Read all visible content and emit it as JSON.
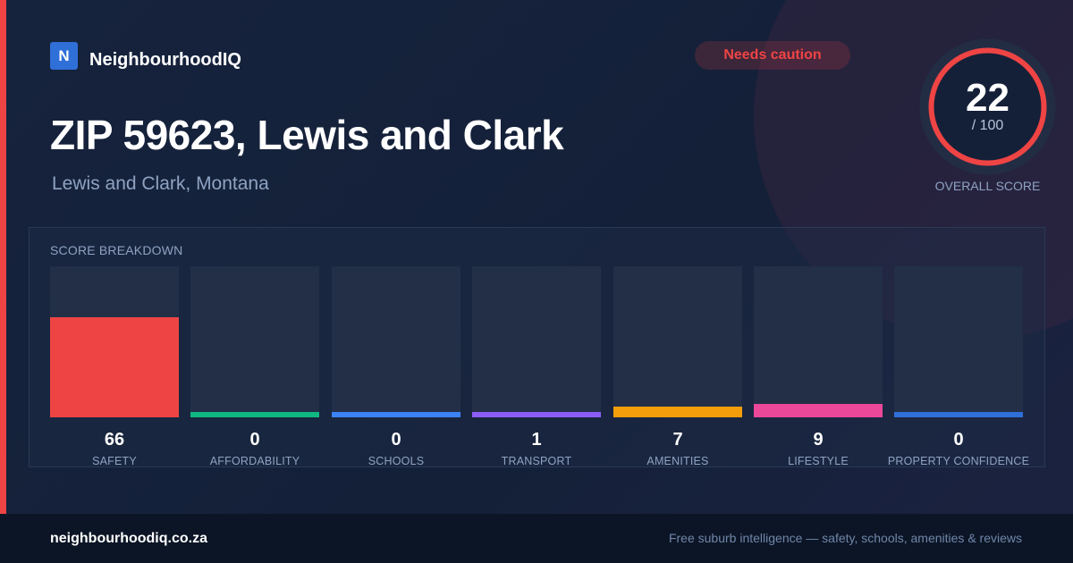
{
  "brand": {
    "logo_letter": "N",
    "name": "NeighbourhoodIQ"
  },
  "badge": {
    "label": "Needs caution",
    "color": "#ef4444"
  },
  "header": {
    "title": "ZIP 59623, Lewis and Clark",
    "subtitle": "Lewis and Clark, Montana"
  },
  "overall": {
    "value": "22",
    "max_label": "/ 100",
    "label": "OVERALL SCORE",
    "ring_color": "#ef4444"
  },
  "chart_data": {
    "type": "bar",
    "title": "SCORE BREAKDOWN",
    "ylim": [
      0,
      100
    ],
    "categories": [
      "SAFETY",
      "AFFORDABILITY",
      "SCHOOLS",
      "TRANSPORT",
      "AMENITIES",
      "LIFESTYLE",
      "PROPERTY CONFIDENCE"
    ],
    "values": [
      66,
      0,
      0,
      1,
      7,
      9,
      0
    ],
    "colors": [
      "#ef4444",
      "#10b981",
      "#3b82f6",
      "#8b5cf6",
      "#f59e0b",
      "#ec4899",
      "#2f6fd8"
    ]
  },
  "footer": {
    "domain": "neighbourhoodiq.co.za",
    "tagline": "Free suburb intelligence — safety, schools, amenities & reviews"
  }
}
